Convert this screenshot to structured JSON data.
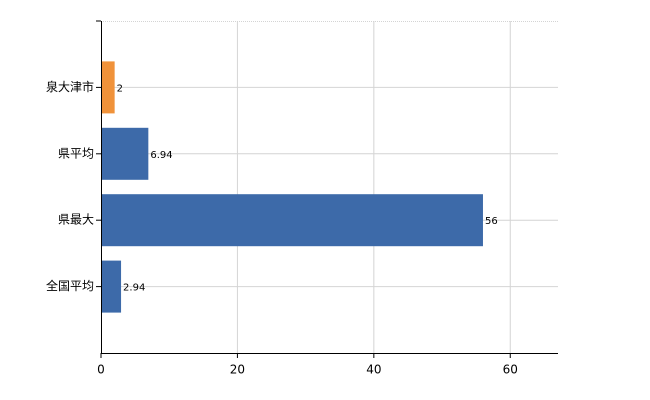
{
  "chart_data": {
    "type": "bar",
    "orientation": "horizontal",
    "categories": [
      "泉大津市",
      "県平均",
      "県最大",
      "全国平均"
    ],
    "values": [
      2,
      6.94,
      56,
      2.94
    ],
    "colors": [
      "#f0923a",
      "#3d6aa9",
      "#3d6aa9",
      "#3d6aa9"
    ],
    "xlim": [
      0,
      67
    ],
    "xticks": [
      0,
      20,
      40,
      60
    ],
    "grid": true
  }
}
